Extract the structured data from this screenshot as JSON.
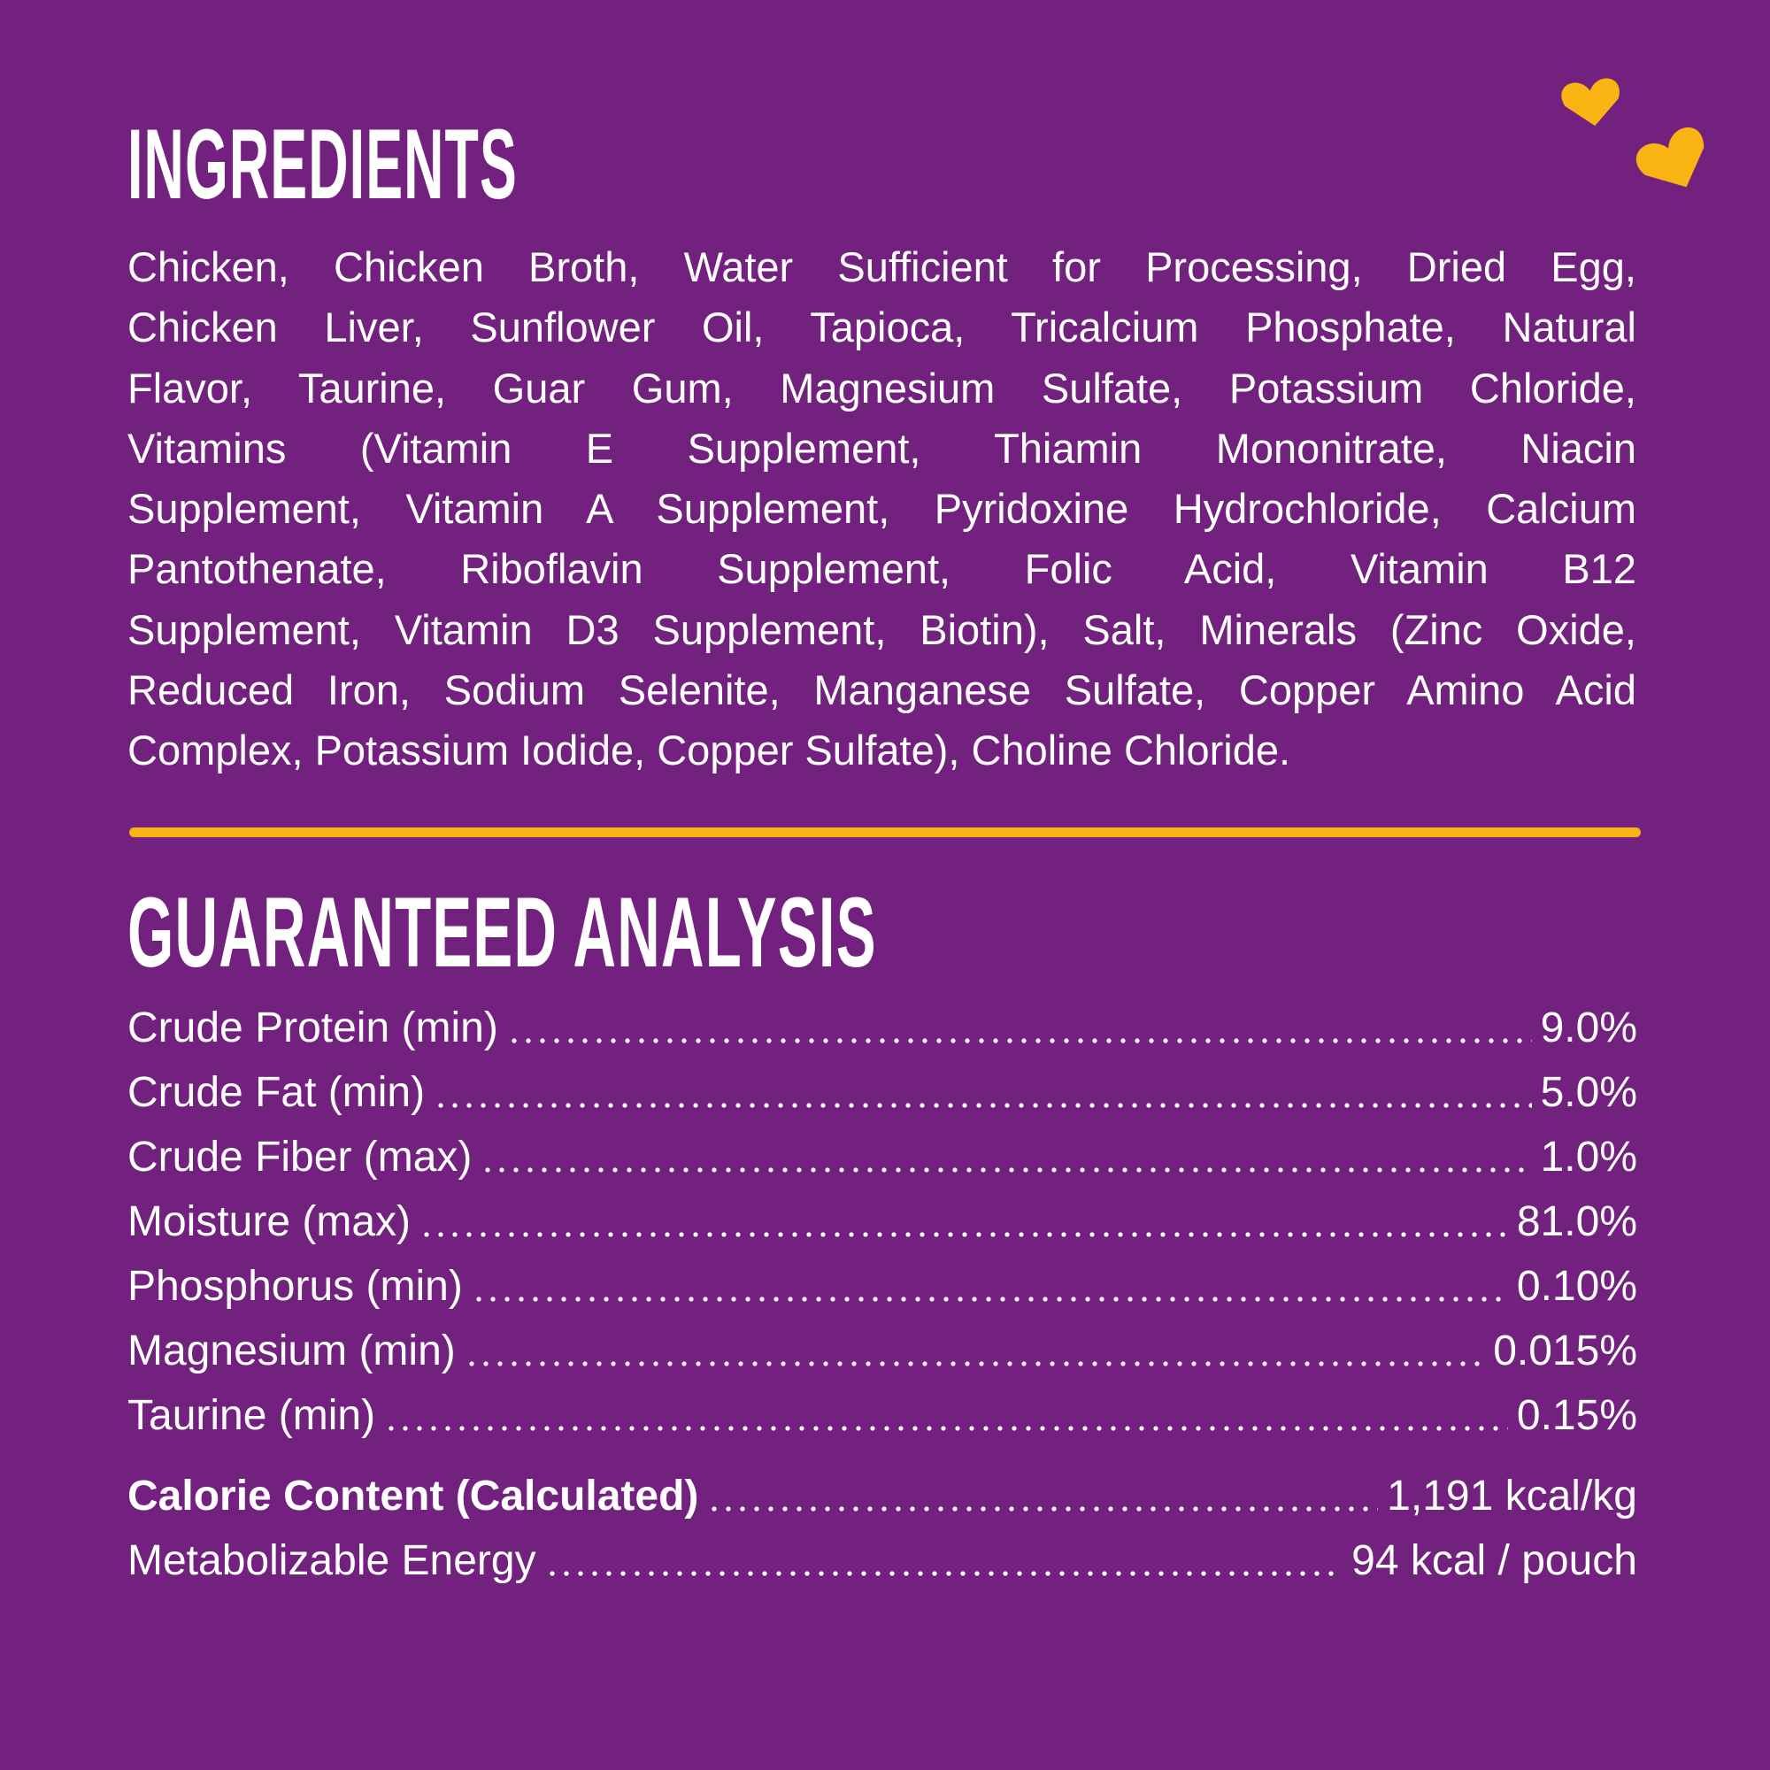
{
  "ingredients": {
    "title": "INGREDIENTS",
    "lines": [
      "Chicken, Chicken Broth, Water Sufficient for Processing, Dried Egg,",
      "Chicken Liver, Sunflower Oil, Tapioca, Tricalcium Phosphate, Natural",
      "Flavor, Taurine, Guar Gum, Magnesium Sulfate, Potassium Chloride,",
      "Vitamins (Vitamin E Supplement, Thiamin Mononitrate, Niacin",
      "Supplement, Vitamin A Supplement, Pyridoxine Hydrochloride, Calcium",
      "Pantothenate, Riboflavin Supplement, Folic Acid, Vitamin B12",
      "Supplement, Vitamin D3 Supplement, Biotin), Salt, Minerals (Zinc Oxide,",
      "Reduced Iron, Sodium Selenite, Manganese Sulfate, Copper Amino Acid",
      "Complex, Potassium Iodide, Copper Sulfate), Choline Chloride."
    ]
  },
  "analysis": {
    "title": "GUARANTEED ANALYSIS",
    "rows": [
      [
        "Crude Protein (min)",
        "9.0%"
      ],
      [
        "Crude Fat (min)",
        "5.0%"
      ],
      [
        "Crude Fiber (max)",
        "1.0%"
      ],
      [
        "Moisture (max)",
        "81.0%"
      ],
      [
        "Phosphorus (min)",
        "0.10%"
      ],
      [
        "Magnesium (min)",
        "0.015%"
      ],
      [
        "Taurine (min)",
        "0.15%"
      ]
    ],
    "calorie_rows": [
      [
        "Calorie Content (Calculated)",
        "1,191 kcal/kg"
      ],
      [
        "Metabolizable Energy",
        "94 kcal / pouch"
      ]
    ]
  }
}
